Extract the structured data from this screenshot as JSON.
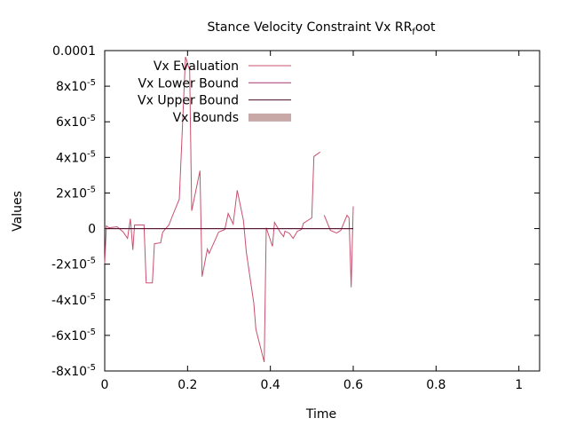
{
  "chart_data": {
    "type": "line",
    "title": "Stance Velocity Constraint Vx RR",
    "title_subscript": "f",
    "title_suffix": "oot",
    "xlabel": "Time",
    "ylabel": "Values",
    "xlim": [
      0,
      1.05
    ],
    "ylim": [
      -8e-05,
      0.0001
    ],
    "grid": false,
    "legend_position": "top-left",
    "x_ticks": [
      {
        "value": 0,
        "label": "0"
      },
      {
        "value": 0.2,
        "label": "0.2"
      },
      {
        "value": 0.4,
        "label": "0.4"
      },
      {
        "value": 0.6,
        "label": "0.6"
      },
      {
        "value": 0.8,
        "label": "0.8"
      },
      {
        "value": 1,
        "label": "1"
      }
    ],
    "y_ticks": [
      {
        "value": 0.0001,
        "label": "0.0001",
        "mantissa": "",
        "exp": ""
      },
      {
        "value": 8e-05,
        "label": "",
        "mantissa": "8x10",
        "exp": "-5"
      },
      {
        "value": 6e-05,
        "label": "",
        "mantissa": "6x10",
        "exp": "-5"
      },
      {
        "value": 4e-05,
        "label": "",
        "mantissa": "4x10",
        "exp": "-5"
      },
      {
        "value": 2e-05,
        "label": "",
        "mantissa": "2x10",
        "exp": "-5"
      },
      {
        "value": 0,
        "label": "0",
        "mantissa": "",
        "exp": ""
      },
      {
        "value": -2e-05,
        "label": "",
        "mantissa": "-2x10",
        "exp": "-5"
      },
      {
        "value": -4e-05,
        "label": "",
        "mantissa": "-4x10",
        "exp": "-5"
      },
      {
        "value": -6e-05,
        "label": "",
        "mantissa": "-6x10",
        "exp": "-5"
      },
      {
        "value": -8e-05,
        "label": "",
        "mantissa": "-8x10",
        "exp": "-5"
      }
    ],
    "series": [
      {
        "name": "Vx Evaluation",
        "color": "#c8506e",
        "style": "line",
        "points": [
          [
            0.0,
            -1.95e-05
          ],
          [
            0.004,
            1.5e-06
          ],
          [
            0.01,
            5e-07
          ],
          [
            0.03,
            1e-06
          ],
          [
            0.045,
            -2e-06
          ],
          [
            0.055,
            -5.5e-06
          ],
          [
            0.062,
            5.5e-06
          ],
          [
            0.068,
            -1.2e-05
          ],
          [
            0.072,
            2e-06
          ],
          [
            0.095,
            2e-06
          ],
          [
            0.1,
            -3.05e-05
          ],
          [
            0.115,
            -3.05e-05
          ],
          [
            0.12,
            -8.5e-06
          ],
          [
            0.135,
            -8e-06
          ],
          [
            0.14,
            -2e-06
          ],
          [
            0.155,
            2e-06
          ],
          [
            0.165,
            8e-06
          ],
          [
            0.18,
            1.65e-05
          ],
          [
            0.195,
            9.65e-05
          ],
          [
            0.205,
            8.9e-05
          ],
          [
            0.21,
            1e-05
          ],
          [
            0.23,
            3.25e-05
          ],
          [
            0.235,
            -2.7e-05
          ],
          [
            0.248,
            -1.15e-05
          ],
          [
            0.252,
            -1.4e-05
          ],
          [
            0.275,
            -2e-06
          ],
          [
            0.29,
            -5e-07
          ],
          [
            0.298,
            8.5e-06
          ],
          [
            0.31,
            2.5e-06
          ],
          [
            0.32,
            2.15e-05
          ],
          [
            0.335,
            4.5e-06
          ],
          [
            0.342,
            -1.35e-05
          ],
          [
            0.36,
            -4.2e-05
          ],
          [
            0.365,
            -5.65e-05
          ],
          [
            0.385,
            -7.5e-05
          ],
          [
            0.39,
            5e-07
          ],
          [
            0.405,
            -1e-05
          ],
          [
            0.41,
            3.5e-06
          ],
          [
            0.425,
            -2.5e-06
          ],
          [
            0.432,
            -4.5e-06
          ],
          [
            0.435,
            -1.5e-06
          ],
          [
            0.445,
            -2.5e-06
          ],
          [
            0.455,
            -5.5e-06
          ],
          [
            0.465,
            -1.5e-06
          ],
          [
            0.475,
            -5e-07
          ],
          [
            0.48,
            3e-06
          ],
          [
            0.5,
            6e-06
          ],
          [
            0.505,
            4.05e-05
          ],
          [
            0.52,
            4.3e-05
          ],
          null,
          [
            0.53,
            7.5e-06
          ],
          [
            0.545,
            -1e-06
          ],
          [
            0.56,
            -2.5e-06
          ],
          [
            0.57,
            -1e-06
          ],
          [
            0.585,
            7.5e-06
          ],
          [
            0.59,
            6e-06
          ],
          [
            0.595,
            -3.3e-05
          ],
          [
            0.6,
            1.25e-05
          ]
        ]
      },
      {
        "name": "Vx Lower Bound",
        "color": "#a8326e",
        "style": "line",
        "points": [
          [
            0.0,
            0
          ],
          [
            0.6,
            0
          ]
        ]
      },
      {
        "name": "Vx Upper Bound",
        "color": "#4a0f2a",
        "style": "line",
        "points": [
          [
            0.0,
            0
          ],
          [
            0.6,
            0
          ]
        ]
      },
      {
        "name": "Vx Bounds",
        "color": "#c9a8a8",
        "style": "band",
        "points": []
      }
    ]
  }
}
